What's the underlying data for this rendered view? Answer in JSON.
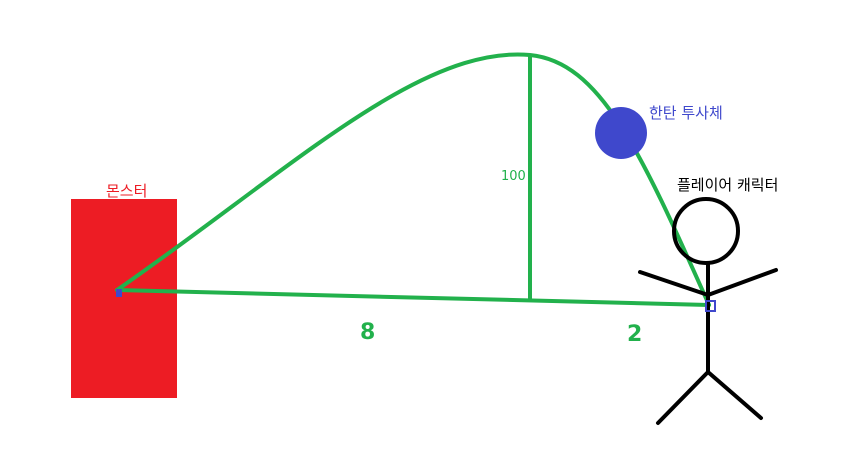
{
  "labels": {
    "monster": "몬스터",
    "projectile": "한탄 투사체",
    "player": "플레이어 캐릭터",
    "height": "100",
    "distance_left": "8",
    "distance_right": "2"
  },
  "colors": {
    "monster": "#ed1c24",
    "trajectory": "#22b14c",
    "projectile": "#3f48cc",
    "player": "#000000",
    "marker": "#3f48cc"
  }
}
